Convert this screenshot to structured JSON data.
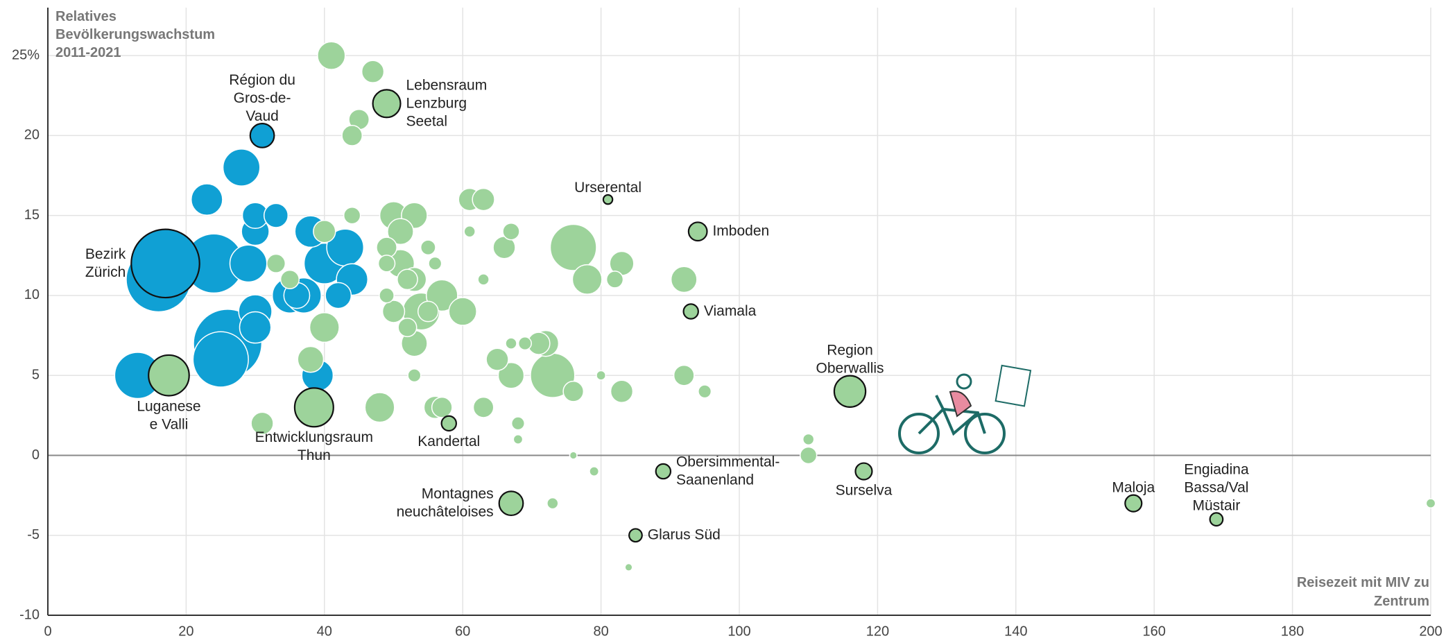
{
  "chart_data": {
    "type": "scatter",
    "y_title": "Relatives\nBevölkerungswachstum\n2011-2021",
    "x_title": "Reisezeit mit MIV zu\nZentrum",
    "xlim": [
      0,
      200
    ],
    "ylim": [
      -10,
      28
    ],
    "xticks": [
      0,
      20,
      40,
      60,
      80,
      100,
      120,
      140,
      160,
      180,
      200
    ],
    "yticks": [
      -10,
      -5,
      0,
      5,
      10,
      15,
      20,
      {
        "value": 25,
        "label": "25%"
      }
    ],
    "grid": true,
    "series": [
      {
        "color": "#10a0d4",
        "x": [
          17,
          31,
          24,
          16,
          26,
          25,
          13,
          23,
          28,
          30,
          30,
          33,
          29,
          30,
          30,
          35,
          36,
          37,
          38,
          40,
          43,
          44,
          42,
          39
        ],
        "values": [
          12,
          20,
          12,
          11,
          7,
          6,
          5,
          16,
          18,
          15,
          14,
          15,
          12,
          9,
          8,
          10,
          10,
          10,
          14,
          12,
          13,
          11,
          10,
          5
        ],
        "sizes": [
          37,
          13,
          32,
          35,
          37,
          30,
          25,
          17,
          20,
          14,
          15,
          13,
          20,
          18,
          17,
          19,
          14,
          19,
          17,
          22,
          20,
          17,
          14,
          17
        ],
        "labels": [
          "Bezirk\nZürich",
          "Région du\nGros-de-\nVaud",
          null,
          null,
          null,
          null,
          null,
          null,
          null,
          null,
          null,
          null,
          null,
          null,
          null,
          null,
          null,
          null,
          null,
          null,
          null,
          null,
          null,
          null
        ]
      },
      {
        "color": "#9dd39b",
        "x": [
          17.5,
          38.5,
          49,
          58,
          81,
          94,
          93,
          116,
          89,
          118,
          67,
          85,
          157,
          169,
          41,
          47,
          45,
          44,
          44,
          40,
          50,
          53,
          51,
          49,
          49,
          51,
          53,
          52,
          49,
          50,
          54,
          57,
          55,
          52,
          53,
          55,
          56,
          60,
          61,
          63,
          61,
          63,
          66,
          67,
          76,
          78,
          82,
          83,
          92,
          40,
          38,
          48,
          56,
          57,
          63,
          31,
          65,
          67,
          67,
          69,
          71,
          72,
          73,
          76,
          80,
          83,
          92,
          95,
          53,
          68,
          68,
          33,
          35,
          110,
          110,
          76,
          79,
          73,
          84,
          200
        ],
        "values": [
          5,
          3,
          22,
          2,
          16,
          14,
          9,
          4,
          -1,
          -1,
          -3,
          -5,
          -3,
          -4,
          25,
          24,
          21,
          20,
          15,
          14,
          15,
          15,
          14,
          13,
          12,
          12,
          11,
          11,
          10,
          9,
          9,
          10,
          9,
          8,
          7,
          13,
          12,
          9,
          14,
          11,
          16,
          16,
          13,
          14,
          13,
          11,
          11,
          12,
          11,
          8,
          6,
          3,
          3,
          3,
          3,
          2,
          6,
          5,
          7,
          7,
          7,
          7,
          5,
          4,
          5,
          4,
          5,
          4,
          5,
          2,
          1,
          12,
          11,
          1,
          0,
          0,
          -1,
          -3,
          -7,
          -3
        ],
        "sizes": [
          22,
          21,
          15,
          8,
          5,
          10,
          8,
          17,
          8,
          9,
          13,
          7,
          9,
          7,
          15,
          12,
          11,
          11,
          9,
          12,
          15,
          14,
          14,
          11,
          9,
          15,
          13,
          11,
          8,
          12,
          20,
          17,
          11,
          10,
          14,
          8,
          7,
          15,
          6,
          6,
          12,
          12,
          12,
          9,
          25,
          16,
          9,
          13,
          14,
          16,
          14,
          16,
          12,
          11,
          11,
          12,
          12,
          14,
          6,
          7,
          12,
          14,
          24,
          11,
          5,
          12,
          11,
          7,
          7,
          7,
          5,
          10,
          10,
          6,
          9,
          4,
          5,
          6,
          4,
          5
        ],
        "labels": [
          "Luganese\ne Valli",
          "Entwicklungsraum\nThun",
          "Lebensraum\nLenzburg\nSeetal",
          "Kandertal",
          "Urserental",
          "Imboden",
          "Viamala",
          "Region\nOberwallis",
          "Obersimmental-\nSaanenland",
          "Surselva",
          "Montagnes\nneuchâteloises",
          "Glarus Süd",
          "Maloja",
          "Engiadina\nBassa/Val\nMüstair",
          null,
          null,
          null,
          null,
          null,
          null,
          null,
          null,
          null,
          null,
          null,
          null,
          null,
          null,
          null,
          null,
          null,
          null,
          null,
          null,
          null,
          null,
          null,
          null,
          null,
          null,
          null,
          null,
          null,
          null,
          null,
          null,
          null,
          null,
          null,
          null,
          null,
          null,
          null,
          null,
          null,
          null,
          null,
          null,
          null,
          null,
          null,
          null,
          null,
          null,
          null,
          null,
          null,
          null,
          null,
          null,
          null,
          null,
          null,
          null,
          null,
          null,
          null,
          null,
          null,
          null
        ]
      }
    ]
  }
}
